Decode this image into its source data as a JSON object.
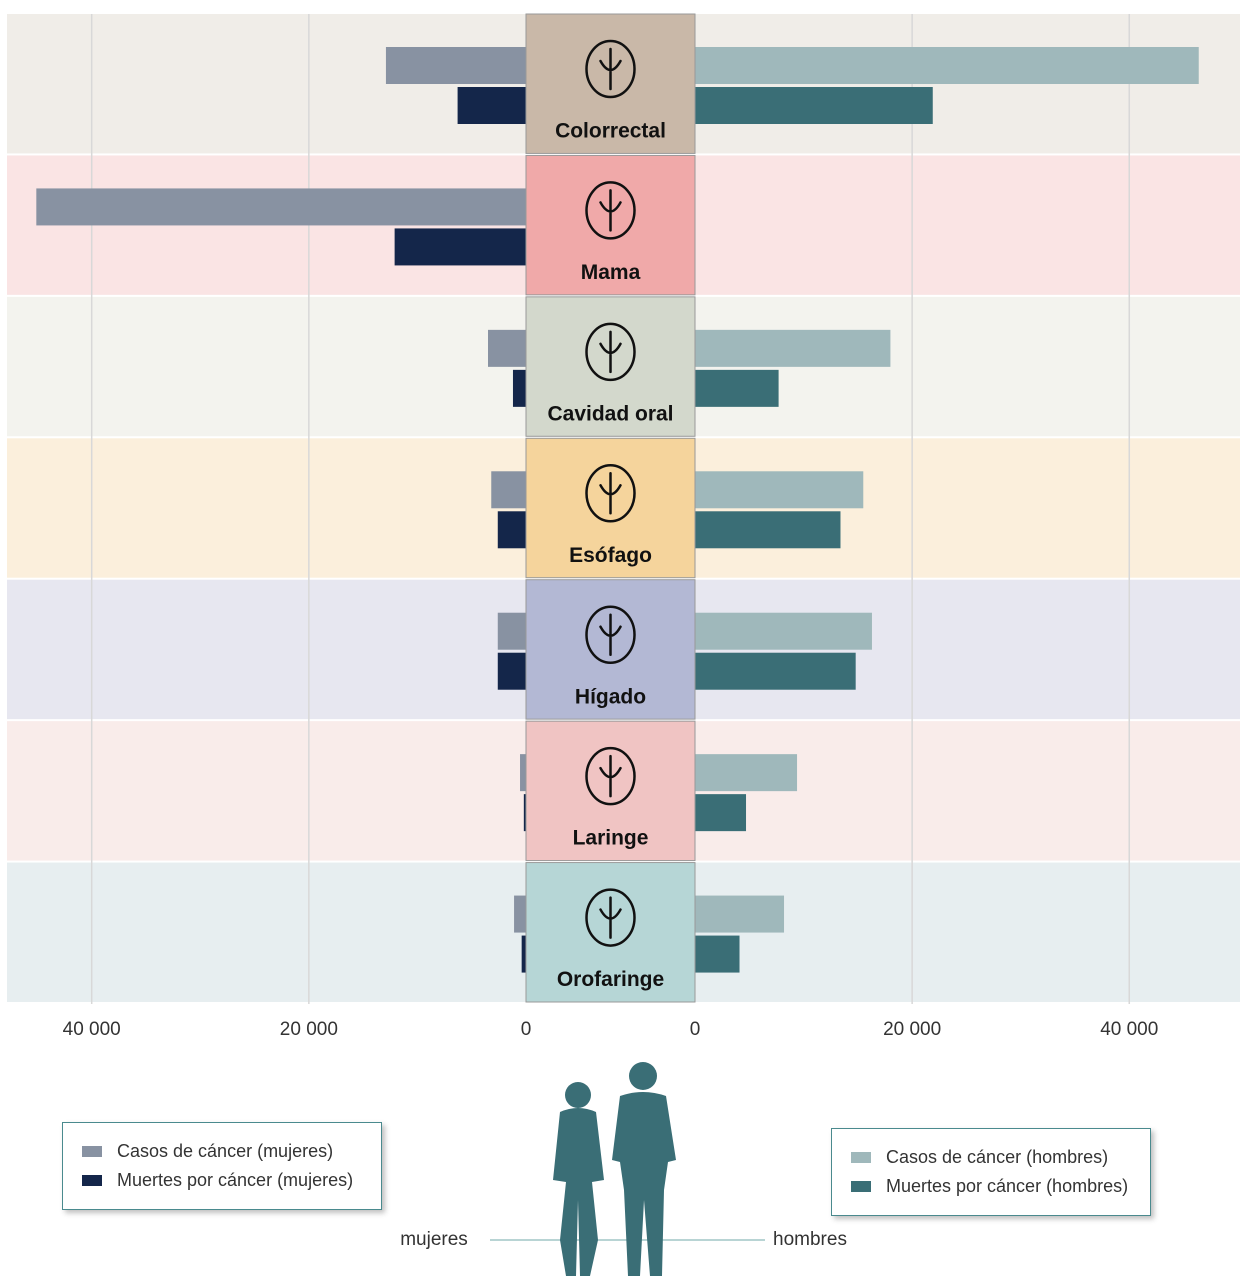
{
  "chart_data": {
    "type": "butterfly",
    "categories": [
      "Colorrectal",
      "Mama",
      "Cavidad oral",
      "Esófago",
      "Hígado",
      "Laringe",
      "Orofaringe"
    ],
    "category_colors": [
      "#c9b8a8",
      "#f0a9a9",
      "#d3d8cc",
      "#f5d49c",
      "#b3b8d4",
      "#f0c4c3",
      "#b6d6d6"
    ],
    "band_colors": [
      "#f0ede8",
      "#fae4e4",
      "#f3f3ee",
      "#fbefdc",
      "#e7e7f0",
      "#f9ecea",
      "#e7eef0"
    ],
    "series": [
      {
        "name": "Casos de cáncer (mujeres)",
        "color": "#8892a2",
        "side": "left",
        "values": [
          12900,
          45100,
          3500,
          3200,
          2600,
          550,
          1100
        ]
      },
      {
        "name": "Muertes por cáncer (mujeres)",
        "color": "#14264a",
        "side": "left",
        "values": [
          6300,
          12100,
          1200,
          2600,
          2600,
          200,
          400
        ]
      },
      {
        "name": "Casos de cáncer (hombres)",
        "color": "#9fb8bb",
        "side": "right",
        "values": [
          46400,
          0,
          18000,
          15500,
          16300,
          9400,
          8200
        ]
      },
      {
        "name": "Muertes por cáncer (hombres)",
        "color": "#3a6e76",
        "side": "right",
        "values": [
          21900,
          0,
          7700,
          13400,
          14800,
          4700,
          4100
        ]
      }
    ],
    "left": {
      "label": "mujeres",
      "xlim": [
        0,
        47800
      ],
      "xticks": [
        {
          "value": 40000,
          "label": "40 000"
        },
        {
          "value": 20000,
          "label": "20 000"
        },
        0
      ]
    },
    "right": {
      "label": "hombres",
      "xlim": [
        0,
        50200
      ],
      "xticks": [
        0,
        {
          "value": 20000,
          "label": "20 000"
        },
        {
          "value": 40000,
          "label": "40 000"
        }
      ]
    },
    "grid": true
  }
}
